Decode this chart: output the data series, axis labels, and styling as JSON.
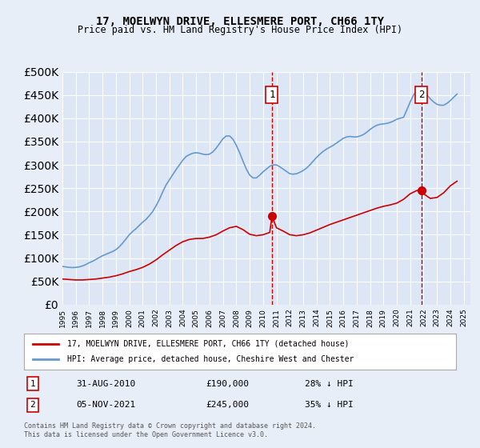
{
  "title": "17, MOELWYN DRIVE, ELLESMERE PORT, CH66 1TY",
  "subtitle": "Price paid vs. HM Land Registry's House Price Index (HPI)",
  "ylabel_ticks": [
    "£0",
    "£50K",
    "£100K",
    "£150K",
    "£200K",
    "£250K",
    "£300K",
    "£350K",
    "£400K",
    "£450K",
    "£500K"
  ],
  "ylim": [
    0,
    500000
  ],
  "xlim_start": 1995.0,
  "xlim_end": 2025.5,
  "bg_color": "#e8eef8",
  "plot_bg": "#dce6f5",
  "grid_color": "#ffffff",
  "red_color": "#cc0000",
  "blue_color": "#6699cc",
  "marker1_x": 2010.667,
  "marker1_y": 190000,
  "marker1_label": "1",
  "marker2_x": 2021.84,
  "marker2_y": 245000,
  "marker2_label": "2",
  "legend_line1": "17, MOELWYN DRIVE, ELLESMERE PORT, CH66 1TY (detached house)",
  "legend_line2": "HPI: Average price, detached house, Cheshire West and Chester",
  "table_row1_num": "1",
  "table_row1_date": "31-AUG-2010",
  "table_row1_price": "£190,000",
  "table_row1_hpi": "28% ↓ HPI",
  "table_row2_num": "2",
  "table_row2_date": "05-NOV-2021",
  "table_row2_price": "£245,000",
  "table_row2_hpi": "35% ↓ HPI",
  "footnote": "Contains HM Land Registry data © Crown copyright and database right 2024.\nThis data is licensed under the Open Government Licence v3.0.",
  "hpi_years": [
    1995.0,
    1995.25,
    1995.5,
    1995.75,
    1996.0,
    1996.25,
    1996.5,
    1996.75,
    1997.0,
    1997.25,
    1997.5,
    1997.75,
    1998.0,
    1998.25,
    1998.5,
    1998.75,
    1999.0,
    1999.25,
    1999.5,
    1999.75,
    2000.0,
    2000.25,
    2000.5,
    2000.75,
    2001.0,
    2001.25,
    2001.5,
    2001.75,
    2002.0,
    2002.25,
    2002.5,
    2002.75,
    2003.0,
    2003.25,
    2003.5,
    2003.75,
    2004.0,
    2004.25,
    2004.5,
    2004.75,
    2005.0,
    2005.25,
    2005.5,
    2005.75,
    2006.0,
    2006.25,
    2006.5,
    2006.75,
    2007.0,
    2007.25,
    2007.5,
    2007.75,
    2008.0,
    2008.25,
    2008.5,
    2008.75,
    2009.0,
    2009.25,
    2009.5,
    2009.75,
    2010.0,
    2010.25,
    2010.5,
    2010.75,
    2011.0,
    2011.25,
    2011.5,
    2011.75,
    2012.0,
    2012.25,
    2012.5,
    2012.75,
    2013.0,
    2013.25,
    2013.5,
    2013.75,
    2014.0,
    2014.25,
    2014.5,
    2014.75,
    2015.0,
    2015.25,
    2015.5,
    2015.75,
    2016.0,
    2016.25,
    2016.5,
    2016.75,
    2017.0,
    2017.25,
    2017.5,
    2017.75,
    2018.0,
    2018.25,
    2018.5,
    2018.75,
    2019.0,
    2019.25,
    2019.5,
    2019.75,
    2020.0,
    2020.25,
    2020.5,
    2020.75,
    2021.0,
    2021.25,
    2021.5,
    2021.75,
    2022.0,
    2022.25,
    2022.5,
    2022.75,
    2023.0,
    2023.25,
    2023.5,
    2023.75,
    2024.0,
    2024.25,
    2024.5
  ],
  "hpi_values": [
    82000,
    81000,
    80000,
    79500,
    80000,
    81000,
    83000,
    86000,
    90000,
    93000,
    97000,
    101000,
    105000,
    108000,
    111000,
    114000,
    118000,
    124000,
    132000,
    141000,
    150000,
    157000,
    163000,
    170000,
    177000,
    183000,
    191000,
    200000,
    212000,
    226000,
    242000,
    257000,
    268000,
    279000,
    290000,
    300000,
    310000,
    318000,
    322000,
    325000,
    326000,
    325000,
    323000,
    322000,
    323000,
    328000,
    336000,
    346000,
    356000,
    362000,
    362000,
    355000,
    342000,
    326000,
    308000,
    291000,
    278000,
    272000,
    272000,
    278000,
    285000,
    291000,
    297000,
    300000,
    300000,
    296000,
    291000,
    286000,
    281000,
    280000,
    281000,
    284000,
    288000,
    293000,
    300000,
    308000,
    316000,
    323000,
    329000,
    334000,
    338000,
    342000,
    347000,
    352000,
    357000,
    360000,
    361000,
    360000,
    360000,
    362000,
    365000,
    370000,
    376000,
    381000,
    385000,
    387000,
    388000,
    389000,
    391000,
    394000,
    398000,
    400000,
    402000,
    418000,
    435000,
    450000,
    460000,
    462000,
    458000,
    450000,
    442000,
    435000,
    430000,
    428000,
    428000,
    432000,
    438000,
    445000,
    452000
  ],
  "red_years": [
    1995.0,
    1995.5,
    1996.0,
    1996.5,
    1997.0,
    1997.5,
    1998.0,
    1998.5,
    1999.0,
    1999.5,
    2000.0,
    2000.5,
    2001.0,
    2001.5,
    2002.0,
    2002.5,
    2003.0,
    2003.5,
    2004.0,
    2004.5,
    2005.0,
    2005.5,
    2006.0,
    2006.5,
    2007.0,
    2007.5,
    2008.0,
    2008.5,
    2009.0,
    2009.5,
    2010.0,
    2010.5,
    2010.667,
    2011.0,
    2011.5,
    2012.0,
    2012.5,
    2013.0,
    2013.5,
    2014.0,
    2014.5,
    2015.0,
    2015.5,
    2016.0,
    2016.5,
    2017.0,
    2017.5,
    2018.0,
    2018.5,
    2019.0,
    2019.5,
    2020.0,
    2020.5,
    2021.0,
    2021.5,
    2021.84,
    2022.0,
    2022.5,
    2023.0,
    2023.5,
    2024.0,
    2024.5
  ],
  "red_values": [
    55000,
    54000,
    53000,
    53000,
    54000,
    55000,
    57000,
    59000,
    62000,
    66000,
    71000,
    75000,
    80000,
    87000,
    96000,
    107000,
    117000,
    127000,
    135000,
    140000,
    142000,
    142000,
    145000,
    150000,
    158000,
    165000,
    168000,
    161000,
    151000,
    148000,
    150000,
    155000,
    190000,
    165000,
    158000,
    150000,
    148000,
    150000,
    154000,
    160000,
    166000,
    172000,
    177000,
    182000,
    187000,
    192000,
    197000,
    202000,
    207000,
    211000,
    214000,
    218000,
    226000,
    238000,
    245000,
    245000,
    238000,
    228000,
    230000,
    240000,
    255000,
    265000
  ]
}
